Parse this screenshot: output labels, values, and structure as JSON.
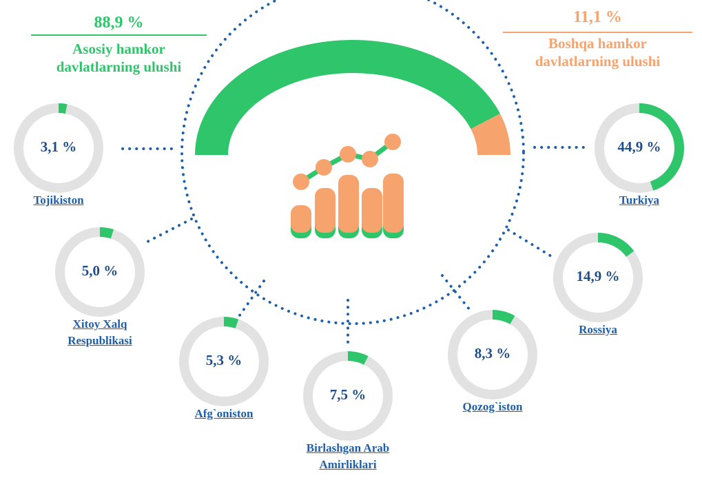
{
  "chart_data": [
    {
      "type": "gauge",
      "categories": [
        "Asosiy hamkor davlatlarning ulushi",
        "Boshqa hamkor davlatlarning ulushi"
      ],
      "values": [
        88.9,
        11.1
      ],
      "value_labels": [
        "88,9 %",
        "11,1 %"
      ],
      "colors": [
        "#2ec56b",
        "#f7a36e"
      ]
    },
    {
      "type": "donut",
      "categories": [
        "Tojikiston",
        "Xitoy Xalq Respublikasi",
        "Afg`oniston",
        "Birlashgan Arab Amirliklari",
        "Qozog`iston",
        "Rossiya",
        "Turkiya"
      ],
      "values": [
        3.1,
        5.0,
        5.3,
        7.5,
        8.3,
        14.9,
        44.9
      ],
      "value_labels": [
        "3,1 %",
        "5,0 %",
        "5,3 %",
        "7,5 %",
        "8,3 %",
        "14,9 %",
        "44,9 %"
      ],
      "color": "#2ec56b",
      "track_color": "#e2e2e2"
    }
  ]
}
